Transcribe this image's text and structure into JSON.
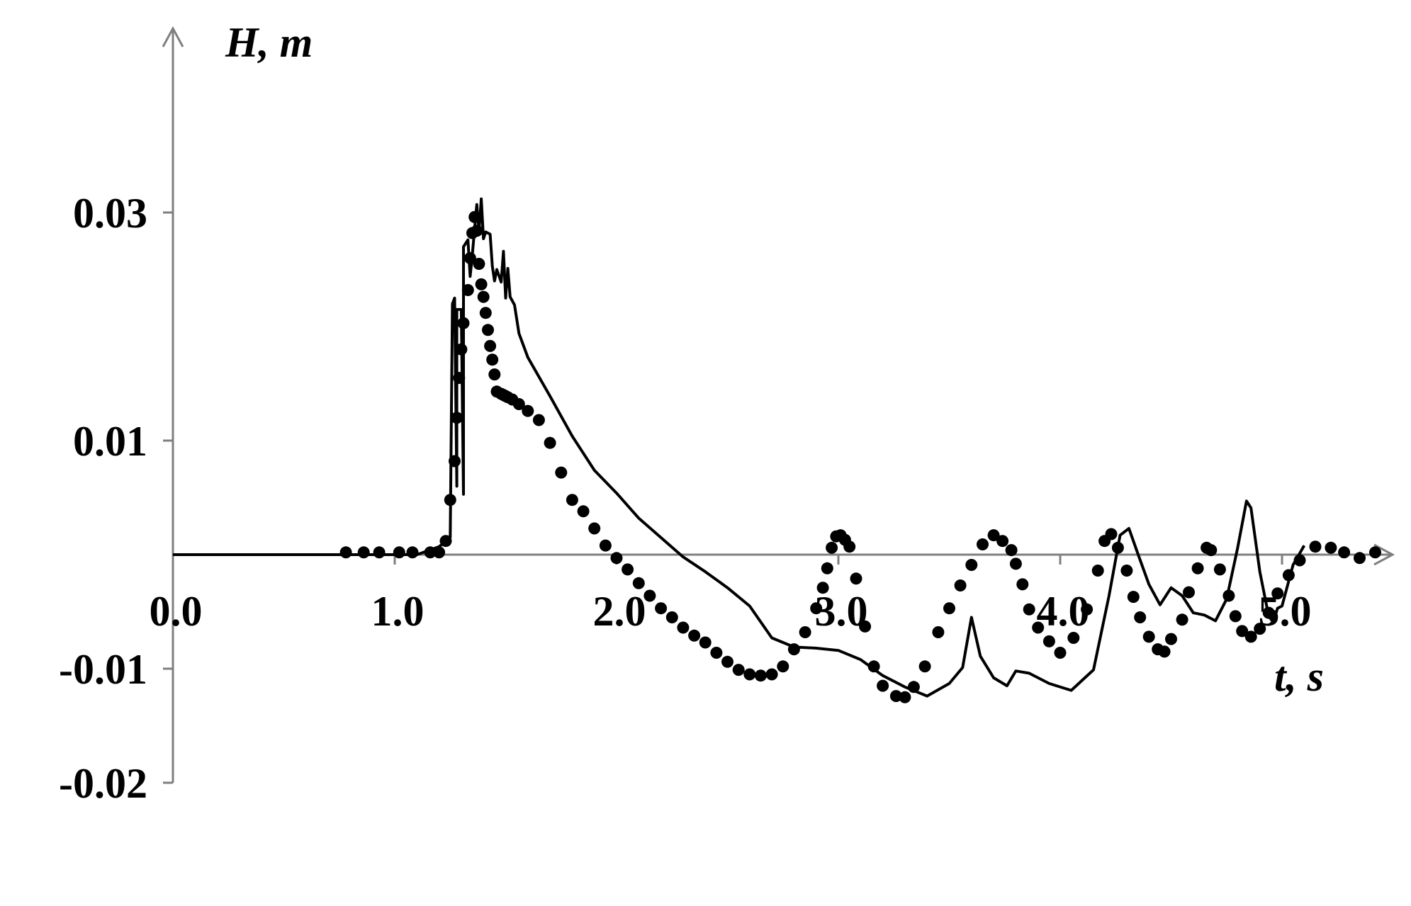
{
  "chart_data": {
    "type": "line",
    "xlabel": "t, s",
    "ylabel": "H, m",
    "xlim": [
      0,
      5.5
    ],
    "ylim": [
      -0.02,
      0.037
    ],
    "x_ticks": [
      0.0,
      1.0,
      2.0,
      3.0,
      4.0,
      5.0
    ],
    "x_tick_labels": [
      "0.0",
      "1.0",
      "2.0",
      "3.0",
      "4.0",
      "5.0"
    ],
    "y_ticks": [
      0.03,
      0.01,
      -0.01,
      -0.02
    ],
    "y_tick_labels": [
      "0.03",
      "0.01",
      "-0.01",
      "-0.02"
    ],
    "grid": false,
    "legend": "none",
    "series": [
      {
        "style": "solid-line",
        "color": "#000000",
        "x": [
          0.0,
          0.5,
          1.0,
          1.1,
          1.2,
          1.25,
          1.26,
          1.27,
          1.28,
          1.28,
          1.3,
          1.31,
          1.31,
          1.33,
          1.34,
          1.35,
          1.36,
          1.37,
          1.38,
          1.39,
          1.4,
          1.41,
          1.43,
          1.44,
          1.45,
          1.46,
          1.48,
          1.49,
          1.5,
          1.51,
          1.52,
          1.54,
          1.56,
          1.6,
          1.7,
          1.8,
          1.9,
          2.0,
          2.1,
          2.2,
          2.3,
          2.4,
          2.5,
          2.6,
          2.7,
          2.8,
          2.9,
          3.0,
          3.1,
          3.2,
          3.3,
          3.4,
          3.5,
          3.56,
          3.6,
          3.64,
          3.7,
          3.76,
          3.8,
          3.86,
          3.95,
          4.05,
          4.15,
          4.22,
          4.27,
          4.31,
          4.35,
          4.4,
          4.45,
          4.5,
          4.55,
          4.6,
          4.65,
          4.7,
          4.75,
          4.8,
          4.84,
          4.86,
          4.9,
          4.94,
          4.96,
          4.98,
          5.0,
          5.05,
          5.1
        ],
        "y": [
          0.0,
          0.0,
          0.0,
          0.0,
          0.0007,
          0.0015,
          0.022,
          0.0225,
          0.006,
          0.0215,
          0.0215,
          0.0053,
          0.027,
          0.0276,
          0.0244,
          0.0263,
          0.0286,
          0.0307,
          0.0283,
          0.0312,
          0.0277,
          0.0283,
          0.0281,
          0.0253,
          0.024,
          0.025,
          0.0239,
          0.0266,
          0.0225,
          0.0251,
          0.0226,
          0.0219,
          0.0194,
          0.0173,
          0.0139,
          0.0104,
          0.0074,
          0.0054,
          0.0032,
          0.0015,
          -0.0002,
          -0.0015,
          -0.0029,
          -0.0045,
          -0.0073,
          -0.0081,
          -0.0082,
          -0.0084,
          -0.0092,
          -0.0106,
          -0.0116,
          -0.0124,
          -0.0113,
          -0.0099,
          -0.0055,
          -0.0089,
          -0.0108,
          -0.0115,
          -0.0102,
          -0.0104,
          -0.0113,
          -0.0119,
          -0.0101,
          -0.0036,
          0.0017,
          0.0023,
          0.0001,
          -0.0026,
          -0.0044,
          -0.0029,
          -0.0036,
          -0.0051,
          -0.0053,
          -0.0058,
          -0.0039,
          0.0006,
          0.0047,
          0.0041,
          -0.0015,
          -0.0054,
          -0.0059,
          -0.0047,
          -0.0045,
          -0.0009,
          0.0008
        ]
      },
      {
        "style": "dots",
        "color": "#000000",
        "x": [
          0.78,
          0.86,
          0.93,
          1.02,
          1.08,
          1.16,
          1.2,
          1.23,
          1.25,
          1.27,
          1.28,
          1.29,
          1.3,
          1.31,
          1.33,
          1.34,
          1.35,
          1.36,
          1.37,
          1.38,
          1.39,
          1.4,
          1.41,
          1.42,
          1.43,
          1.44,
          1.45,
          1.46,
          1.48,
          1.49,
          1.5,
          1.51,
          1.53,
          1.56,
          1.6,
          1.65,
          1.7,
          1.75,
          1.8,
          1.85,
          1.9,
          1.95,
          2.0,
          2.05,
          2.1,
          2.15,
          2.2,
          2.25,
          2.3,
          2.35,
          2.4,
          2.45,
          2.5,
          2.55,
          2.6,
          2.65,
          2.7,
          2.75,
          2.8,
          2.85,
          2.9,
          2.93,
          2.95,
          2.97,
          2.99,
          3.01,
          3.03,
          3.05,
          3.08,
          3.12,
          3.16,
          3.2,
          3.26,
          3.3,
          3.34,
          3.39,
          3.45,
          3.5,
          3.55,
          3.6,
          3.65,
          3.7,
          3.74,
          3.78,
          3.8,
          3.83,
          3.86,
          3.9,
          3.95,
          4.0,
          4.06,
          4.12,
          4.17,
          4.2,
          4.23,
          4.26,
          4.3,
          4.33,
          4.36,
          4.4,
          4.44,
          4.47,
          4.5,
          4.55,
          4.58,
          4.62,
          4.66,
          4.68,
          4.72,
          4.76,
          4.79,
          4.82,
          4.86,
          4.9,
          4.94,
          4.98,
          5.03,
          5.08,
          5.15,
          5.22,
          5.28,
          5.35,
          5.42
        ],
        "y": [
          0.0002,
          0.0002,
          0.0002,
          0.0002,
          0.0002,
          0.0002,
          0.0002,
          0.0012,
          0.0048,
          0.0082,
          0.012,
          0.0155,
          0.018,
          0.0203,
          0.0232,
          0.026,
          0.0282,
          0.0296,
          0.0284,
          0.0255,
          0.0237,
          0.0226,
          0.0212,
          0.0197,
          0.0183,
          0.0171,
          0.0158,
          0.0143,
          0.0141,
          0.014,
          0.0139,
          0.0138,
          0.0136,
          0.0132,
          0.0126,
          0.0118,
          0.0098,
          0.0072,
          0.0048,
          0.0038,
          0.0023,
          0.0008,
          -0.0003,
          -0.0013,
          -0.0025,
          -0.0036,
          -0.0047,
          -0.0055,
          -0.0064,
          -0.0071,
          -0.0077,
          -0.0086,
          -0.0094,
          -0.0101,
          -0.0105,
          -0.0106,
          -0.0105,
          -0.0098,
          -0.0083,
          -0.0068,
          -0.0047,
          -0.0029,
          -0.0012,
          0.0006,
          0.0016,
          0.0017,
          0.0013,
          0.0007,
          -0.0021,
          -0.0063,
          -0.0098,
          -0.0115,
          -0.0124,
          -0.0125,
          -0.0116,
          -0.0098,
          -0.0068,
          -0.0047,
          -0.0027,
          -0.0009,
          0.0009,
          0.0017,
          0.0012,
          0.0004,
          -0.0008,
          -0.0026,
          -0.0048,
          -0.0064,
          -0.0076,
          -0.0086,
          -0.0073,
          -0.0048,
          -0.0014,
          0.0012,
          0.0018,
          0.0006,
          -0.0014,
          -0.0037,
          -0.0055,
          -0.0072,
          -0.0083,
          -0.0085,
          -0.0074,
          -0.0057,
          -0.0033,
          -0.0012,
          0.0006,
          0.0004,
          -0.0013,
          -0.0036,
          -0.0054,
          -0.0067,
          -0.0072,
          -0.0065,
          -0.0051,
          -0.0034,
          -0.0018,
          -0.0005,
          0.0007,
          0.0006,
          0.0002,
          -0.0003,
          0.0002
        ]
      }
    ]
  }
}
